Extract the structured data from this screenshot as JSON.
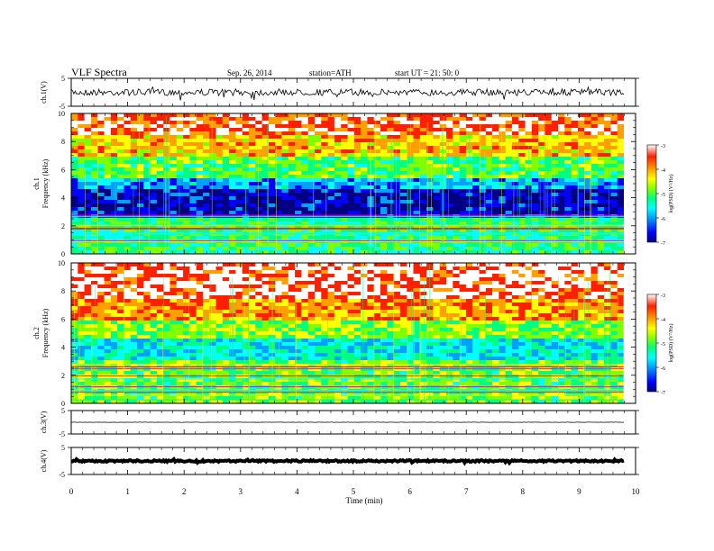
{
  "header": {
    "title": "VLF  Spectra",
    "date": "Sep. 26, 2014",
    "station": "station=ATH",
    "start": "start  UT  =   21: 50: 0"
  },
  "colors": {
    "spectrogram_scale": [
      "#000080",
      "#0000ff",
      "#00a0ff",
      "#00ffff",
      "#00ff80",
      "#80ff00",
      "#ffff00",
      "#ffa000",
      "#ff2000",
      "#ffffff"
    ]
  },
  "chart_data": [
    {
      "type": "line",
      "panel": "ch1-waveform",
      "ylabel": "ch.1(V)",
      "ytick_labels": [
        "5",
        "-5"
      ],
      "ylim": [
        -5,
        5
      ],
      "xlim": [
        0,
        10
      ],
      "series": [
        {
          "description_values": "noise around baseline ~0 V, spikes to about +/-2 V",
          "baseline": 0.0,
          "amplitude": 1.2
        }
      ]
    },
    {
      "type": "heatmap",
      "panel": "ch1-spectrogram",
      "ylabel": "ch.1\nFrequency  (kHz)",
      "ylabel_line1": "ch.1",
      "ylabel_line2": "Frequency  (kHz)",
      "ytick_labels": [
        "10",
        "8",
        "6",
        "4",
        "2",
        "0"
      ],
      "ylim": [
        0,
        10
      ],
      "xlim": [
        0,
        9.8
      ],
      "colorbar_label": "log(PSD) (V²/Hz)",
      "colorbar_ticks": [
        "-3",
        "-4",
        "-5",
        "-6",
        "-7"
      ],
      "colorbar_range": [
        -7,
        -3
      ],
      "bands": [
        {
          "freq_kHz": [
            8.5,
            10
          ],
          "log_psd": -3.6
        },
        {
          "freq_kHz": [
            7,
            8.5
          ],
          "log_psd": -4.2
        },
        {
          "freq_kHz": [
            5.5,
            7
          ],
          "log_psd": -5.0
        },
        {
          "freq_kHz": [
            4.5,
            5.5
          ],
          "log_psd": -5.9
        },
        {
          "freq_kHz": [
            2.5,
            4.5
          ],
          "log_psd": -6.6
        },
        {
          "freq_kHz": [
            0,
            2.5
          ],
          "log_psd": -5.2
        }
      ]
    },
    {
      "type": "heatmap",
      "panel": "ch2-spectrogram",
      "ylabel_line1": "ch.2",
      "ylabel_line2": "Frequency  (kHz)",
      "ytick_labels": [
        "10",
        "8",
        "6",
        "4",
        "2",
        "0"
      ],
      "ylim": [
        0,
        10
      ],
      "xlim": [
        0,
        9.8
      ],
      "colorbar_label": "log(PSD) (V²/Hz)",
      "colorbar_ticks": [
        "-3",
        "-4",
        "-5",
        "-6",
        "-7"
      ],
      "colorbar_range": [
        -7,
        -3
      ],
      "bands": [
        {
          "freq_kHz": [
            7.5,
            10
          ],
          "log_psd": -3.4
        },
        {
          "freq_kHz": [
            6,
            7.5
          ],
          "log_psd": -4.0
        },
        {
          "freq_kHz": [
            4.5,
            6
          ],
          "log_psd": -4.8
        },
        {
          "freq_kHz": [
            3,
            4.5
          ],
          "log_psd": -5.6
        },
        {
          "freq_kHz": [
            0,
            3
          ],
          "log_psd": -4.9
        }
      ]
    },
    {
      "type": "line",
      "panel": "ch3-waveform",
      "ylabel": "ch.3(V)",
      "ytick_labels": [
        "5",
        "-5"
      ],
      "ylim": [
        -5,
        5
      ],
      "xlim": [
        0,
        10
      ],
      "series": [
        {
          "baseline": 0.0,
          "amplitude": 0.05
        }
      ]
    },
    {
      "type": "line",
      "panel": "ch4-waveform",
      "ylabel": "ch.4(V)",
      "ytick_labels": [
        "5",
        "-5"
      ],
      "ylim": [
        -5,
        5
      ],
      "xlim": [
        0,
        10
      ],
      "series": [
        {
          "baseline": 0.0,
          "amplitude": 0.3
        }
      ]
    }
  ],
  "xaxis": {
    "label": "Time  (min)",
    "tick_labels": [
      "0",
      "1",
      "2",
      "3",
      "4",
      "5",
      "6",
      "7",
      "8",
      "9",
      "10"
    ],
    "xlim": [
      0,
      10
    ]
  }
}
